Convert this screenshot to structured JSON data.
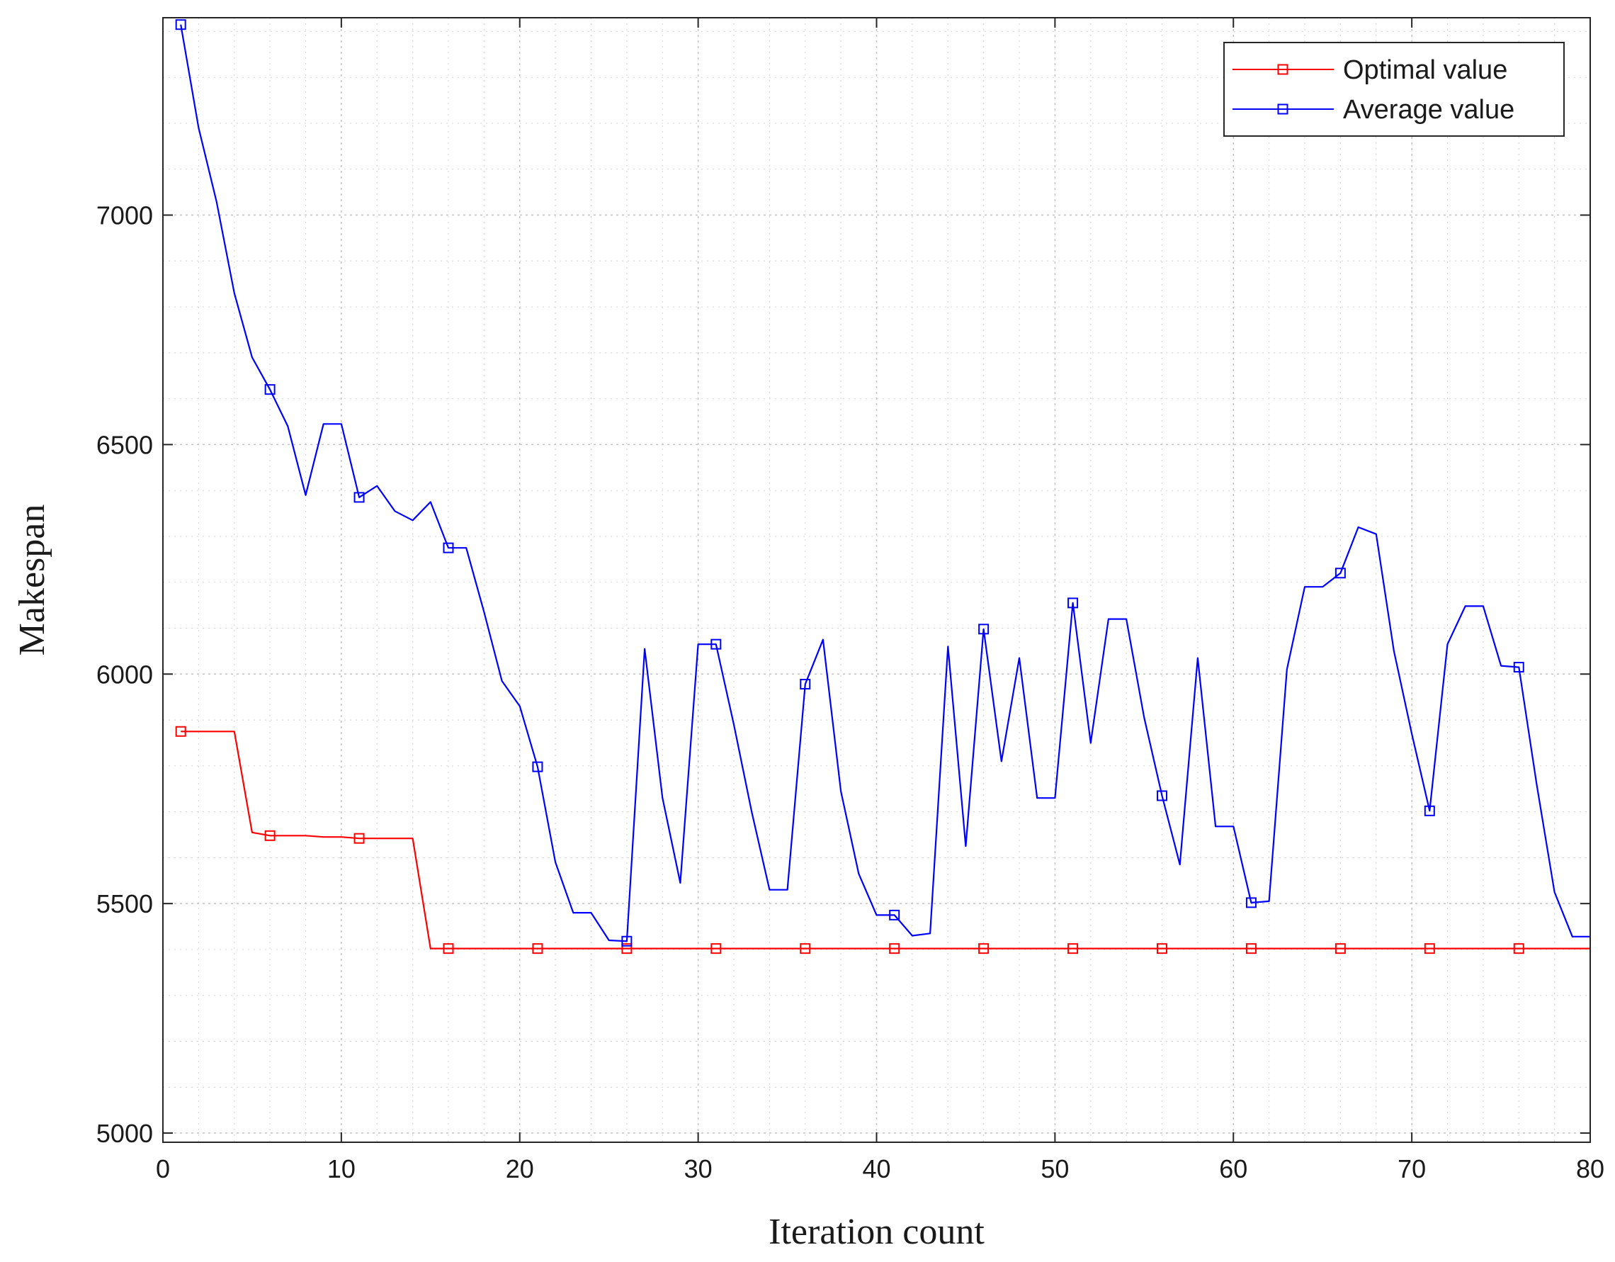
{
  "chart_data": {
    "type": "line",
    "title": "",
    "xlabel": "Iteration count",
    "ylabel": "Makespan",
    "xlim": [
      0,
      80
    ],
    "ylim": [
      4980,
      7430
    ],
    "xticks": [
      0,
      10,
      20,
      30,
      40,
      50,
      60,
      70,
      80
    ],
    "yticks": [
      5000,
      5500,
      6000,
      6500,
      7000
    ],
    "grid": true,
    "legend_position": "top-right",
    "series": [
      {
        "name": "Optimal value",
        "color": "#ff0000",
        "marker": "square",
        "marker_every": 5,
        "x": [
          1,
          2,
          3,
          4,
          5,
          6,
          7,
          8,
          9,
          10,
          11,
          12,
          13,
          14,
          15,
          16,
          17,
          18,
          19,
          20,
          21,
          22,
          23,
          24,
          25,
          26,
          27,
          28,
          29,
          30,
          31,
          32,
          33,
          34,
          35,
          36,
          37,
          38,
          39,
          40,
          41,
          42,
          43,
          44,
          45,
          46,
          47,
          48,
          49,
          50,
          51,
          52,
          53,
          54,
          55,
          56,
          57,
          58,
          59,
          60,
          61,
          62,
          63,
          64,
          65,
          66,
          67,
          68,
          69,
          70,
          71,
          72,
          73,
          74,
          75,
          76,
          77,
          78,
          79,
          80
        ],
        "values": [
          5875,
          5875,
          5875,
          5875,
          5655,
          5648,
          5648,
          5648,
          5645,
          5645,
          5642,
          5642,
          5642,
          5642,
          5402,
          5402,
          5402,
          5402,
          5402,
          5402,
          5402,
          5402,
          5402,
          5402,
          5402,
          5402,
          5402,
          5402,
          5402,
          5402,
          5402,
          5402,
          5402,
          5402,
          5402,
          5402,
          5402,
          5402,
          5402,
          5402,
          5402,
          5402,
          5402,
          5402,
          5402,
          5402,
          5402,
          5402,
          5402,
          5402,
          5402,
          5402,
          5402,
          5402,
          5402,
          5402,
          5402,
          5402,
          5402,
          5402,
          5402,
          5402,
          5402,
          5402,
          5402,
          5402,
          5402,
          5402,
          5402,
          5402,
          5402,
          5402,
          5402,
          5402,
          5402,
          5402,
          5402,
          5402,
          5402,
          5402
        ]
      },
      {
        "name": "Average value",
        "color": "#0000ff",
        "marker": "square",
        "marker_every": 5,
        "x": [
          1,
          2,
          3,
          4,
          5,
          6,
          7,
          8,
          9,
          10,
          11,
          12,
          13,
          14,
          15,
          16,
          17,
          18,
          19,
          20,
          21,
          22,
          23,
          24,
          25,
          26,
          27,
          28,
          29,
          30,
          31,
          32,
          33,
          34,
          35,
          36,
          37,
          38,
          39,
          40,
          41,
          42,
          43,
          44,
          45,
          46,
          47,
          48,
          49,
          50,
          51,
          52,
          53,
          54,
          55,
          56,
          57,
          58,
          59,
          60,
          61,
          62,
          63,
          64,
          65,
          66,
          67,
          68,
          69,
          70,
          71,
          72,
          73,
          74,
          75,
          76,
          77,
          78,
          79,
          80
        ],
        "values": [
          7415,
          7190,
          7030,
          6830,
          6690,
          6620,
          6540,
          6390,
          6545,
          6545,
          6385,
          6410,
          6355,
          6335,
          6375,
          6275,
          6275,
          6135,
          5985,
          5930,
          5798,
          5590,
          5480,
          5480,
          5420,
          5418,
          6055,
          5730,
          5545,
          6065,
          6065,
          5890,
          5700,
          5530,
          5530,
          5978,
          6075,
          5745,
          5565,
          5475,
          5475,
          5430,
          5435,
          6060,
          5625,
          6098,
          5810,
          6035,
          5730,
          5730,
          6155,
          5850,
          6120,
          6120,
          5905,
          5735,
          5585,
          6035,
          5668,
          5668,
          5502,
          5505,
          6010,
          6190,
          6190,
          6220,
          6320,
          6305,
          6050,
          5870,
          5702,
          6065,
          6148,
          6148,
          6018,
          6015,
          5760,
          5525,
          5428,
          5428
        ]
      }
    ]
  }
}
